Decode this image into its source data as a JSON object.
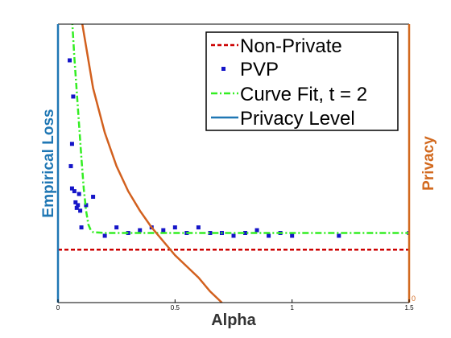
{
  "chart_data": {
    "type": "scatter",
    "xlabel": "Alpha",
    "ylabel_left": "Empirical Loss",
    "ylabel_right": "Privacy",
    "right_axis_tick": "0",
    "xlim": [
      0,
      1.5
    ],
    "ylim": [
      0,
      1
    ],
    "x_ticks": [
      {
        "value": 0,
        "label": "0"
      },
      {
        "value": 0.5,
        "label": "0.5"
      },
      {
        "value": 1,
        "label": "1"
      },
      {
        "value": 1.5,
        "label": "1.5"
      }
    ],
    "grid": false,
    "legend_position": "top-right",
    "colors": {
      "left_axis": "#1f77b4",
      "right_axis": "#d2691e",
      "non_private": "#cc0000",
      "pvp": "#1515c8",
      "curve_fit": "#33ee22",
      "privacy_level": "#d2601e"
    },
    "series": [
      {
        "name": "Non-Private",
        "kind": "dashed-line",
        "x": [
          0,
          1.5
        ],
        "y": [
          0.19,
          0.19
        ]
      },
      {
        "name": "PVP",
        "kind": "points",
        "x": [
          0.05,
          0.055,
          0.06,
          0.06,
          0.065,
          0.07,
          0.075,
          0.08,
          0.085,
          0.09,
          0.095,
          0.1,
          0.12,
          0.15,
          0.2,
          0.25,
          0.3,
          0.35,
          0.4,
          0.45,
          0.5,
          0.55,
          0.6,
          0.65,
          0.7,
          0.75,
          0.8,
          0.85,
          0.9,
          0.95,
          1.0,
          1.2,
          1.5
        ],
        "y": [
          0.87,
          0.49,
          0.41,
          0.57,
          0.74,
          0.4,
          0.36,
          0.34,
          0.35,
          0.39,
          0.33,
          0.27,
          0.35,
          0.38,
          0.24,
          0.27,
          0.25,
          0.26,
          0.27,
          0.26,
          0.27,
          0.25,
          0.27,
          0.25,
          0.25,
          0.24,
          0.25,
          0.26,
          0.24,
          0.25,
          0.24,
          0.24,
          0.25
        ]
      },
      {
        "name": "Curve Fit, t = 2",
        "kind": "dash-dot-line",
        "x": [
          0.06,
          0.07,
          0.08,
          0.09,
          0.1,
          0.11,
          0.12,
          0.13,
          0.14,
          0.15,
          0.2,
          0.5,
          1.0,
          1.5
        ],
        "y": [
          1.02,
          0.88,
          0.76,
          0.64,
          0.52,
          0.41,
          0.33,
          0.28,
          0.26,
          0.253,
          0.25,
          0.25,
          0.25,
          0.25
        ]
      },
      {
        "name": "Privacy Level",
        "kind": "line",
        "x": [
          0.1,
          0.15,
          0.2,
          0.25,
          0.3,
          0.35,
          0.4,
          0.45,
          0.5,
          0.55,
          0.6,
          0.65,
          0.7
        ],
        "y": [
          1.02,
          0.77,
          0.61,
          0.49,
          0.4,
          0.33,
          0.27,
          0.22,
          0.17,
          0.13,
          0.09,
          0.04,
          0.0
        ]
      }
    ]
  }
}
